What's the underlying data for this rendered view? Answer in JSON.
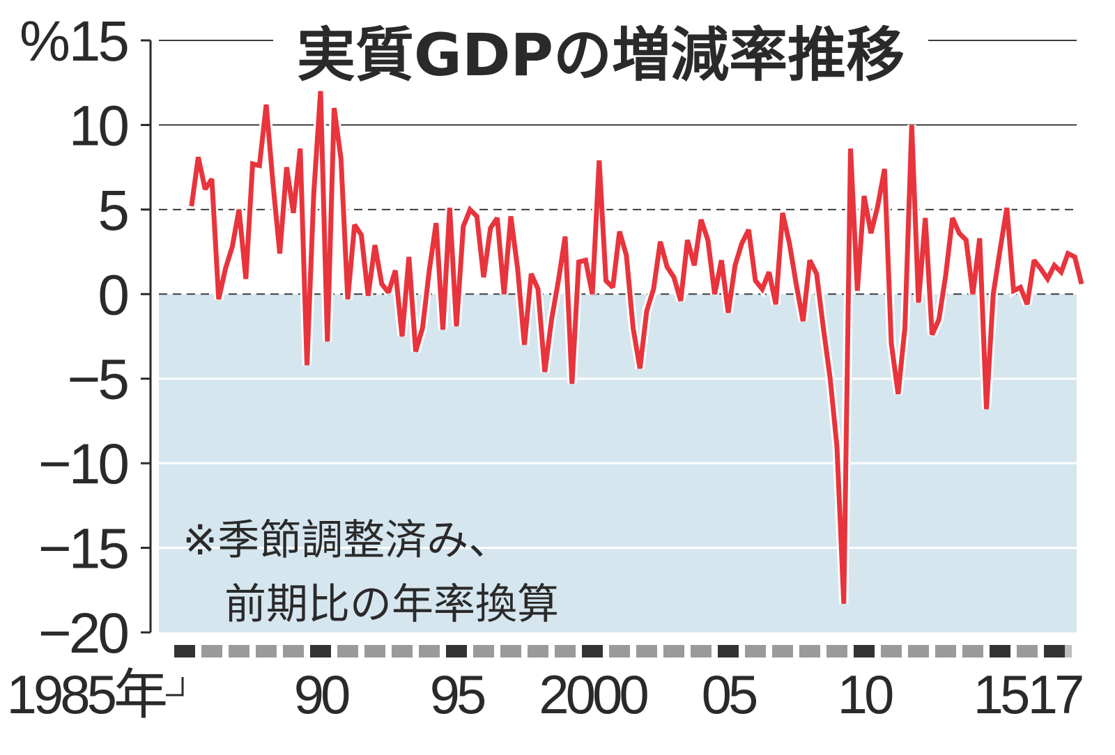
{
  "chart_data": {
    "type": "line",
    "title": "実質GDPの増減率推移",
    "note": [
      "※季節調整済み、",
      "前期比の年率換算"
    ],
    "y_unit": "%",
    "ylim": [
      -20,
      15
    ],
    "y_ticks": [
      15,
      10,
      5,
      0,
      -5,
      -10,
      -15,
      -20
    ],
    "y_tick_labels": [
      "15",
      "10",
      "5",
      "0",
      "−5",
      "−10",
      "−15",
      "−20"
    ],
    "x_start": {
      "year": 1985,
      "quarter": 2
    },
    "x_labels": [
      {
        "text": "1985年",
        "year": 1985
      },
      {
        "text": "90",
        "year": 1990
      },
      {
        "text": "95",
        "year": 1995
      },
      {
        "text": "2000",
        "year": 2000
      },
      {
        "text": "05",
        "year": 2005
      },
      {
        "text": "10",
        "year": 2010
      },
      {
        "text": "15",
        "year": 2015
      },
      {
        "text": "17",
        "year": 2017
      }
    ],
    "colors": {
      "line": "#e8343c",
      "negative_area": "#d6e6ef",
      "grid": "#3a3a3a",
      "year_dark": "#333333",
      "year_light": "#9a9a9a"
    },
    "series": [
      {
        "values": [
          5.2,
          8.1,
          6.2,
          6.8,
          -0.3,
          1.5,
          2.8,
          5.0,
          0.9,
          7.7,
          7.6,
          11.2,
          6.5,
          2.4,
          7.5,
          4.8,
          8.6,
          -4.2,
          6.0,
          12.0,
          -2.8,
          11.0,
          8.0,
          -0.3,
          4.1,
          3.5,
          -0.1,
          2.9,
          0.6,
          0.1,
          1.4,
          -2.5,
          2.2,
          -3.4,
          -2.0,
          1.4,
          4.2,
          -2.1,
          5.1,
          -1.9,
          4.0,
          5.0,
          4.6,
          1.0,
          3.9,
          4.5,
          0.0,
          4.6,
          1.5,
          -3.0,
          1.2,
          0.3,
          -4.6,
          -1.5,
          0.8,
          3.4,
          -5.3,
          1.9,
          2.0,
          0.0,
          7.9,
          0.8,
          0.4,
          3.7,
          2.3,
          -2.0,
          -4.4,
          -1.0,
          0.3,
          3.1,
          1.6,
          1.0,
          -0.4,
          3.2,
          1.7,
          4.4,
          3.2,
          0.0,
          2.0,
          -1.1,
          1.7,
          3.0,
          3.8,
          0.8,
          0.3,
          1.3,
          -0.6,
          4.8,
          3.0,
          0.6,
          -1.6,
          2.0,
          1.2,
          -2.0,
          -5.0,
          -9.0,
          -18.3,
          8.6,
          0.2,
          5.8,
          3.6,
          5.2,
          7.4,
          -2.9,
          -5.9,
          -2.0,
          10.0,
          -0.5,
          4.5,
          -2.4,
          -1.5,
          1.1,
          4.5,
          3.6,
          3.2,
          0.0,
          3.3,
          -6.8,
          0.0,
          2.6,
          5.1,
          0.2,
          0.4,
          -0.6,
          2.0,
          1.5,
          0.9,
          1.7,
          1.3,
          2.4,
          2.2,
          0.6
        ]
      }
    ]
  }
}
